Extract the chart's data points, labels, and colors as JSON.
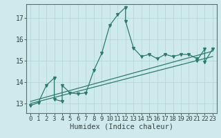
{
  "xlabel": "Humidex (Indice chaleur)",
  "bg_color": "#ceeaec",
  "line_color": "#2d7b6e",
  "xlim": [
    -0.5,
    23.5
  ],
  "ylim": [
    12.55,
    17.65
  ],
  "yticks": [
    13,
    14,
    15,
    16,
    17
  ],
  "xticks": [
    0,
    1,
    2,
    3,
    4,
    5,
    6,
    7,
    8,
    9,
    10,
    11,
    12,
    13,
    14,
    15,
    16,
    17,
    18,
    19,
    20,
    21,
    22,
    23
  ],
  "main_x": [
    0,
    1,
    2,
    3,
    3,
    4,
    4,
    5,
    6,
    7,
    8,
    9,
    10,
    11,
    12,
    12,
    13,
    14,
    15,
    16,
    17,
    18,
    19,
    20,
    21,
    21,
    22,
    22,
    23
  ],
  "main_y": [
    12.9,
    13.05,
    13.85,
    14.2,
    13.2,
    13.1,
    13.85,
    13.5,
    13.45,
    13.5,
    14.55,
    15.35,
    16.65,
    17.15,
    17.5,
    16.85,
    15.6,
    15.2,
    15.3,
    15.1,
    15.3,
    15.2,
    15.3,
    15.3,
    15.1,
    15.0,
    15.55,
    14.95,
    15.55
  ],
  "trend1_x": [
    0,
    23
  ],
  "trend1_y": [
    13.0,
    15.2
  ],
  "trend2_x": [
    0,
    23
  ],
  "trend2_y": [
    13.1,
    15.45
  ],
  "grid_color": "#afd4d8",
  "spine_color": "#557070",
  "tick_color": "#334444",
  "tick_fontsize": 6.5,
  "label_fontsize": 7.5
}
